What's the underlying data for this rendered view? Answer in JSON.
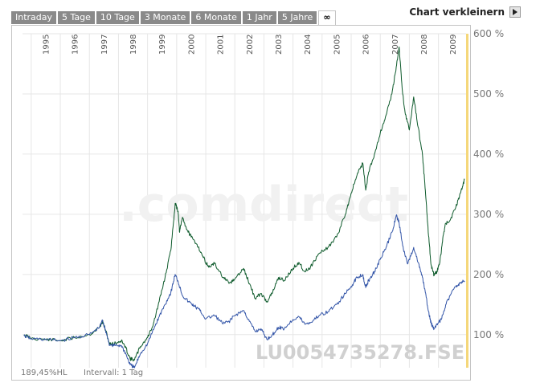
{
  "tabs": [
    {
      "label": "Intraday"
    },
    {
      "label": "5 Tage"
    },
    {
      "label": "10 Tage"
    },
    {
      "label": "3 Monate"
    },
    {
      "label": "6 Monate"
    },
    {
      "label": "1 Jahr"
    },
    {
      "label": "5 Jahre"
    },
    {
      "label": "∞"
    }
  ],
  "active_tab": 7,
  "shrink_label": "Chart verkleinern",
  "watermark_brand": ".comdirect",
  "watermark_isin": "LU0054735278.FSE",
  "footer_value": "189,45%HL",
  "footer_interval": "Intervall: 1 Tag",
  "colors": {
    "series_green": "#0d5a2b",
    "series_blue": "#3355a8",
    "highlight_bar": "#f5d77a",
    "grid": "#e6e6e6",
    "text_grey": "#777777"
  },
  "chart_data": {
    "type": "line",
    "x_ticks": [
      "1995",
      "1996",
      "1997",
      "1998",
      "1999",
      "2000",
      "2001",
      "2002",
      "2003",
      "2004",
      "2005",
      "2006",
      "2007",
      "2008",
      "2009"
    ],
    "y_ticks": [
      "100 %",
      "200 %",
      "300 %",
      "400 %",
      "500 %",
      "600 %"
    ],
    "xlim": [
      1994.7,
      2009.95
    ],
    "ylim": [
      45,
      600
    ],
    "y_axis_side": "right",
    "grid": true,
    "series": [
      {
        "color": "#0d5a2b",
        "points": [
          [
            1994.75,
            100
          ],
          [
            1995.0,
            94
          ],
          [
            1995.5,
            92
          ],
          [
            1996.0,
            90
          ],
          [
            1996.5,
            95
          ],
          [
            1997.0,
            100
          ],
          [
            1997.35,
            112
          ],
          [
            1997.45,
            122
          ],
          [
            1997.55,
            108
          ],
          [
            1997.7,
            84
          ],
          [
            1997.9,
            86
          ],
          [
            1998.1,
            90
          ],
          [
            1998.25,
            78
          ],
          [
            1998.4,
            60
          ],
          [
            1998.55,
            58
          ],
          [
            1998.75,
            80
          ],
          [
            1999.0,
            95
          ],
          [
            1999.2,
            118
          ],
          [
            1999.4,
            155
          ],
          [
            1999.6,
            195
          ],
          [
            1999.8,
            240
          ],
          [
            1999.95,
            318
          ],
          [
            2000.05,
            305
          ],
          [
            2000.1,
            270
          ],
          [
            2000.2,
            295
          ],
          [
            2000.35,
            275
          ],
          [
            2000.5,
            262
          ],
          [
            2000.7,
            250
          ],
          [
            2000.9,
            230
          ],
          [
            2001.1,
            212
          ],
          [
            2001.3,
            218
          ],
          [
            2001.6,
            195
          ],
          [
            2001.8,
            185
          ],
          [
            2002.0,
            192
          ],
          [
            2002.3,
            210
          ],
          [
            2002.5,
            185
          ],
          [
            2002.7,
            160
          ],
          [
            2002.9,
            168
          ],
          [
            2003.1,
            155
          ],
          [
            2003.3,
            170
          ],
          [
            2003.5,
            195
          ],
          [
            2003.7,
            190
          ],
          [
            2004.0,
            210
          ],
          [
            2004.2,
            220
          ],
          [
            2004.4,
            205
          ],
          [
            2004.6,
            212
          ],
          [
            2004.9,
            235
          ],
          [
            2005.2,
            245
          ],
          [
            2005.5,
            262
          ],
          [
            2005.8,
            300
          ],
          [
            2006.0,
            335
          ],
          [
            2006.2,
            365
          ],
          [
            2006.4,
            385
          ],
          [
            2006.5,
            340
          ],
          [
            2006.6,
            370
          ],
          [
            2006.8,
            400
          ],
          [
            2007.0,
            435
          ],
          [
            2007.2,
            465
          ],
          [
            2007.4,
            500
          ],
          [
            2007.55,
            545
          ],
          [
            2007.65,
            578
          ],
          [
            2007.75,
            510
          ],
          [
            2007.85,
            470
          ],
          [
            2008.0,
            440
          ],
          [
            2008.15,
            495
          ],
          [
            2008.3,
            445
          ],
          [
            2008.45,
            400
          ],
          [
            2008.55,
            340
          ],
          [
            2008.65,
            270
          ],
          [
            2008.75,
            215
          ],
          [
            2008.85,
            198
          ],
          [
            2008.95,
            205
          ],
          [
            2009.05,
            220
          ],
          [
            2009.15,
            260
          ],
          [
            2009.25,
            285
          ],
          [
            2009.4,
            290
          ],
          [
            2009.6,
            312
          ],
          [
            2009.75,
            335
          ],
          [
            2009.9,
            358
          ]
        ]
      },
      {
        "color": "#3355a8",
        "points": [
          [
            1994.75,
            98
          ],
          [
            1995.0,
            93
          ],
          [
            1995.5,
            92
          ],
          [
            1996.0,
            90
          ],
          [
            1996.5,
            95
          ],
          [
            1997.0,
            100
          ],
          [
            1997.35,
            112
          ],
          [
            1997.45,
            124
          ],
          [
            1997.55,
            108
          ],
          [
            1997.7,
            82
          ],
          [
            1997.9,
            82
          ],
          [
            1998.1,
            82
          ],
          [
            1998.25,
            68
          ],
          [
            1998.4,
            50
          ],
          [
            1998.55,
            45
          ],
          [
            1998.75,
            68
          ],
          [
            1999.0,
            85
          ],
          [
            1999.2,
            108
          ],
          [
            1999.4,
            130
          ],
          [
            1999.6,
            150
          ],
          [
            1999.8,
            170
          ],
          [
            1999.95,
            200
          ],
          [
            2000.05,
            188
          ],
          [
            2000.2,
            165
          ],
          [
            2000.4,
            155
          ],
          [
            2000.6,
            148
          ],
          [
            2000.8,
            140
          ],
          [
            2001.0,
            126
          ],
          [
            2001.3,
            132
          ],
          [
            2001.6,
            118
          ],
          [
            2001.8,
            122
          ],
          [
            2002.0,
            132
          ],
          [
            2002.3,
            140
          ],
          [
            2002.5,
            122
          ],
          [
            2002.7,
            105
          ],
          [
            2002.9,
            110
          ],
          [
            2003.1,
            92
          ],
          [
            2003.3,
            100
          ],
          [
            2003.5,
            112
          ],
          [
            2003.7,
            110
          ],
          [
            2004.0,
            125
          ],
          [
            2004.2,
            130
          ],
          [
            2004.4,
            118
          ],
          [
            2004.6,
            120
          ],
          [
            2004.9,
            132
          ],
          [
            2005.2,
            138
          ],
          [
            2005.5,
            150
          ],
          [
            2005.8,
            168
          ],
          [
            2006.0,
            180
          ],
          [
            2006.2,
            195
          ],
          [
            2006.4,
            200
          ],
          [
            2006.5,
            178
          ],
          [
            2006.6,
            190
          ],
          [
            2006.8,
            205
          ],
          [
            2007.0,
            225
          ],
          [
            2007.2,
            245
          ],
          [
            2007.4,
            270
          ],
          [
            2007.55,
            298
          ],
          [
            2007.65,
            285
          ],
          [
            2007.8,
            240
          ],
          [
            2007.95,
            218
          ],
          [
            2008.15,
            245
          ],
          [
            2008.3,
            220
          ],
          [
            2008.45,
            195
          ],
          [
            2008.55,
            170
          ],
          [
            2008.65,
            140
          ],
          [
            2008.75,
            118
          ],
          [
            2008.85,
            110
          ],
          [
            2008.95,
            118
          ],
          [
            2009.1,
            125
          ],
          [
            2009.25,
            150
          ],
          [
            2009.4,
            165
          ],
          [
            2009.6,
            180
          ],
          [
            2009.75,
            186
          ],
          [
            2009.9,
            189
          ]
        ]
      }
    ]
  }
}
